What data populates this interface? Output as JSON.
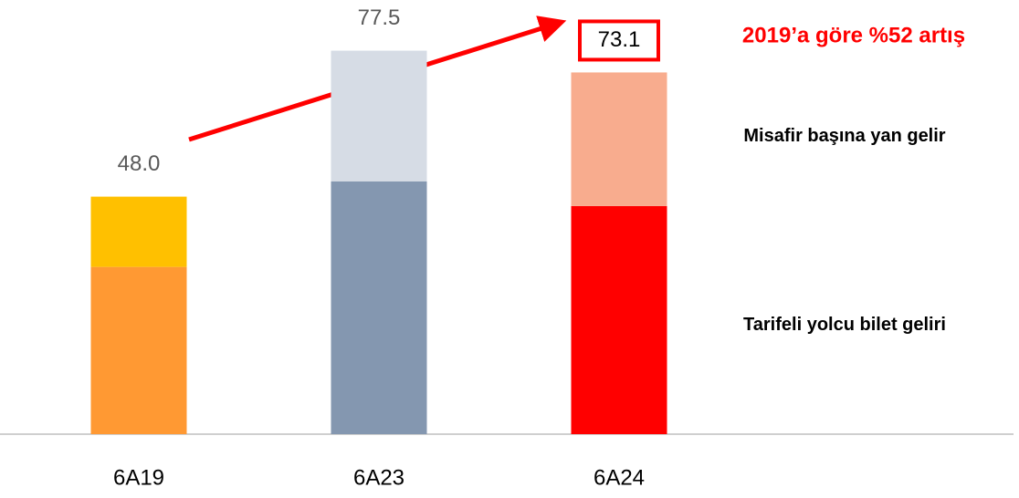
{
  "chart_data": {
    "type": "stacked_bar",
    "categories": [
      "6A19",
      "6A23",
      "6A24"
    ],
    "series": [
      {
        "name": "Tarifeli yolcu bilet geliri",
        "color": [
          "#FF9933",
          "#8497B0",
          "#FF0000"
        ],
        "values": [
          33.8,
          51.1,
          46.1
        ]
      },
      {
        "name": "Misafir başına yan gelir",
        "color": [
          "#FFC000",
          "#D6DCE5",
          "#F8AC8E"
        ],
        "values": [
          14.2,
          26.4,
          27.0
        ]
      }
    ],
    "totals": {
      "values": [
        48.0,
        77.5,
        73.1
      ],
      "value_labels": [
        "48.0",
        "77.5",
        "73.1"
      ]
    },
    "annotation": "2019’a göre %52 artış",
    "ylim": [
      0,
      80
    ]
  }
}
